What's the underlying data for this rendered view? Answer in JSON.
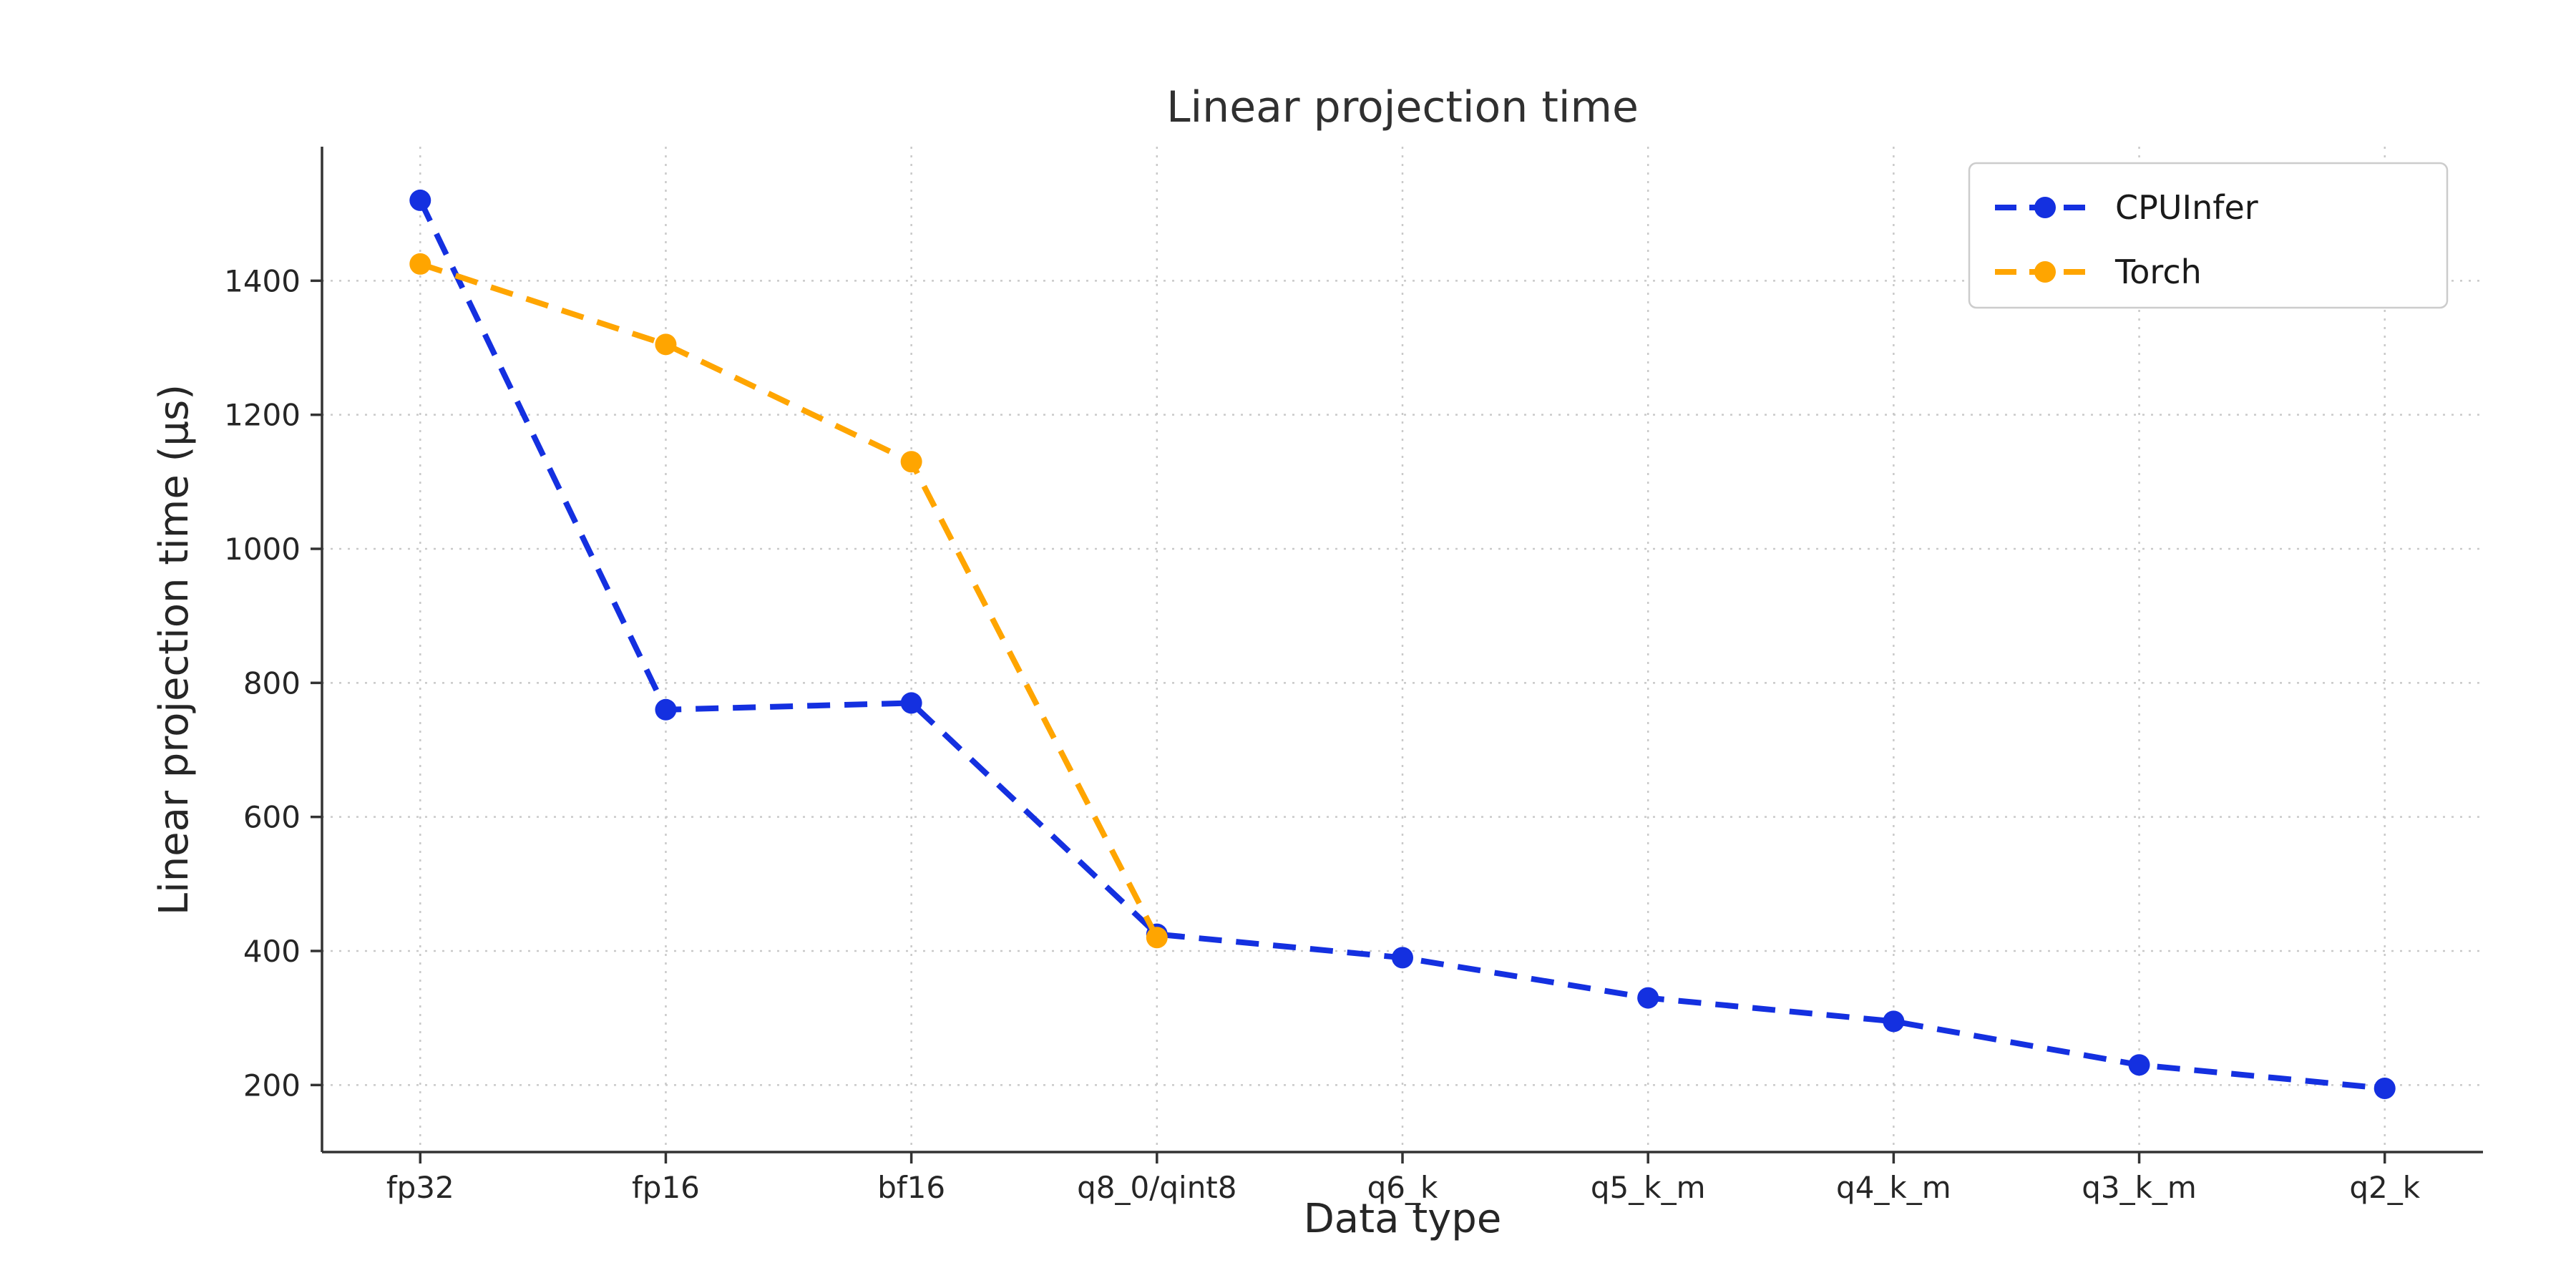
{
  "chart_data": {
    "type": "line",
    "title": "Linear projection time",
    "xlabel": "Data type",
    "ylabel": "Linear projection time (μs)",
    "categories": [
      "fp32",
      "fp16",
      "bf16",
      "q8_0/qint8",
      "q6_k",
      "q5_k_m",
      "q4_k_m",
      "q3_k_m",
      "q2_k"
    ],
    "series": [
      {
        "name": "CPUInfer",
        "color": "#1430e0",
        "values": [
          1520,
          760,
          770,
          425,
          390,
          330,
          295,
          230,
          195
        ]
      },
      {
        "name": "Torch",
        "color": "#ffa500",
        "values": [
          1425,
          1305,
          1130,
          420,
          null,
          null,
          null,
          null,
          null
        ]
      }
    ],
    "yticks": [
      200,
      400,
      600,
      800,
      1000,
      1200,
      1400
    ],
    "ylim": [
      100,
      1600
    ],
    "x_edge_padding": 0.4,
    "grid": true,
    "line_style": "dashed",
    "marker": "circle",
    "legend_position": "upper right",
    "background": "#ffffff"
  }
}
